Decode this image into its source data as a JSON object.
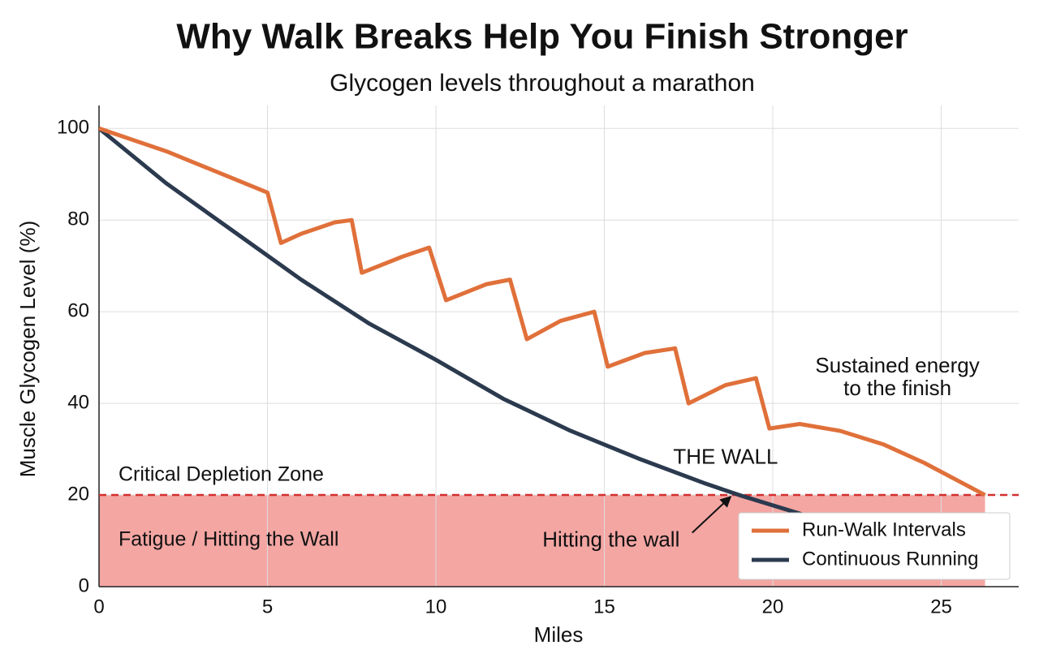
{
  "chart_data": {
    "type": "line",
    "title": "Why Walk Breaks Help You Finish Stronger",
    "subtitle": "Glycogen levels throughout a marathon",
    "x_label": "Miles",
    "y_label": "Muscle Glycogen Level (%)",
    "xlim": [
      0,
      27.3
    ],
    "ylim": [
      0,
      105
    ],
    "xticks": [
      0,
      5,
      10,
      15,
      20,
      25
    ],
    "yticks": [
      0,
      20,
      40,
      60,
      80,
      100
    ],
    "grid": true,
    "legend_position": "lower right",
    "series": [
      {
        "name": "Run-Walk Intervals",
        "color": "#e0703a",
        "x": [
          0,
          1,
          2,
          3,
          4,
          5,
          5.4,
          6,
          7,
          7.5,
          7.8,
          9,
          9.8,
          10.3,
          11.5,
          12.2,
          12.7,
          13.7,
          14.7,
          15.1,
          16.2,
          17.1,
          17.5,
          18.6,
          19.5,
          19.9,
          20.8,
          22,
          23.3,
          24.5,
          26.3
        ],
        "values": [
          100,
          97.5,
          95,
          92,
          89,
          86,
          75,
          77,
          79.5,
          80,
          68.5,
          72,
          74,
          62.5,
          66,
          67,
          54,
          58,
          60,
          48,
          51,
          52,
          40,
          44,
          45.5,
          34.5,
          35.5,
          34,
          31,
          27,
          20
        ]
      },
      {
        "name": "Continuous Running",
        "color": "#2b3a4e",
        "x": [
          0,
          2,
          4,
          6,
          8,
          10,
          12,
          14,
          16,
          18,
          19,
          21
        ],
        "values": [
          100,
          88,
          77.5,
          67,
          57.5,
          49.5,
          41,
          34,
          28,
          22.5,
          20,
          15.5
        ]
      }
    ],
    "zone": {
      "label": "Critical Depletion Zone",
      "inner_label": "Fatigue / Hitting the Wall",
      "threshold": 20,
      "x_end": 26.3,
      "color": "#f4a6a3",
      "line_color": "#d32f2f"
    },
    "annotations": [
      {
        "text": "THE WALL",
        "x": 18.6,
        "y": 28
      },
      {
        "text": "Hitting the wall",
        "x": 15.2,
        "y": 10,
        "arrow_to": [
          18.8,
          20
        ]
      },
      {
        "text": "Sustained energy",
        "x": 23.7,
        "y": 48
      },
      {
        "text": "to the finish",
        "x": 23.7,
        "y": 43
      }
    ]
  }
}
